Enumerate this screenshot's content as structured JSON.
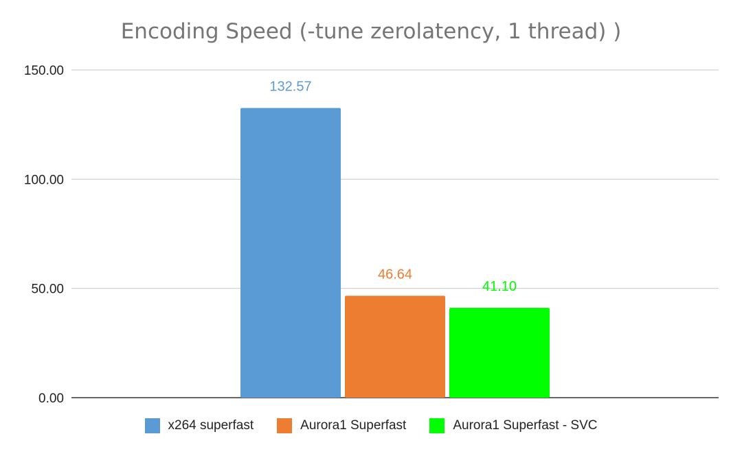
{
  "chart_data": {
    "type": "bar",
    "title": "Encoding Speed (-tune zerolatency, 1 thread) )",
    "xlabel": "",
    "ylabel": "",
    "ylim": [
      0,
      150
    ],
    "yticks": [
      "0.00",
      "50.00",
      "100.00",
      "150.00"
    ],
    "grid": true,
    "legend_position": "bottom",
    "series": [
      {
        "name": "x264 superfast",
        "values": [
          132.57
        ],
        "label": "132.57",
        "color": "#5b9bd5"
      },
      {
        "name": "Aurora1 Superfast",
        "values": [
          46.64
        ],
        "label": "46.64",
        "color": "#ed7d31"
      },
      {
        "name": "Aurora1 Superfast - SVC",
        "values": [
          41.1
        ],
        "label": "41.10",
        "color": "#00ff00"
      }
    ]
  }
}
